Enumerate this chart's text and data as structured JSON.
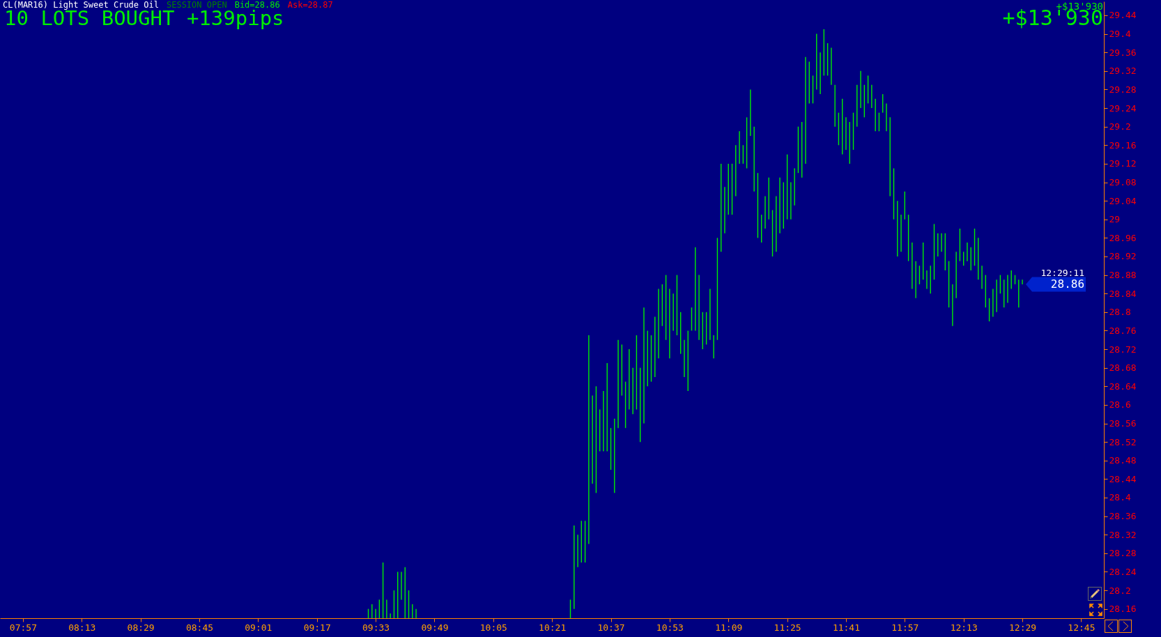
{
  "chart_data": {
    "type": "bar",
    "title": "CL(MAR16) Light Sweet Crude Oil",
    "subtitle": "10 LOTS BOUGHT +139pips",
    "annotations": [
      "SESSION OPEN",
      "Bid=28.86",
      "Ask=28.87",
      "+$13'930",
      "+$13'930",
      "12:29:11",
      "28.86"
    ],
    "x": [
      9.5167,
      9.5333,
      9.55,
      9.5667,
      9.5833,
      9.6,
      9.6167,
      9.6333,
      9.65,
      9.6667,
      9.6833,
      9.7,
      9.7167,
      9.7333,
      10.4333,
      10.45,
      10.4667,
      10.4833,
      10.5,
      10.5167,
      10.5333,
      10.55,
      10.5667,
      10.5833,
      10.6,
      10.6167,
      10.6333,
      10.65,
      10.6667,
      10.6833,
      10.7,
      10.7167,
      10.7333,
      10.75,
      10.7667,
      10.7833,
      10.8,
      10.8167,
      10.8333,
      10.85,
      10.8667,
      10.8833,
      10.9,
      10.9167,
      10.9333,
      10.95,
      10.9667,
      10.9833,
      11,
      11.0167,
      11.0333,
      11.05,
      11.0667,
      11.0833,
      11.1,
      11.1167,
      11.1333,
      11.15,
      11.1667,
      11.1833,
      11.2,
      11.2167,
      11.2333,
      11.25,
      11.2667,
      11.2833,
      11.3,
      11.3167,
      11.3333,
      11.35,
      11.3667,
      11.3833,
      11.4,
      11.4167,
      11.4333,
      11.45,
      11.4667,
      11.4833,
      11.5,
      11.5167,
      11.5333,
      11.55,
      11.5667,
      11.5833,
      11.6,
      11.6167,
      11.6333,
      11.65,
      11.6667,
      11.6833,
      11.7,
      11.7167,
      11.7333,
      11.75,
      11.7667,
      11.7833,
      11.8,
      11.8167,
      11.8333,
      11.85,
      11.8667,
      11.8833,
      11.9,
      11.9167,
      11.9333,
      11.95,
      11.9667,
      11.9833,
      12,
      12.0167,
      12.0333,
      12.05,
      12.0667,
      12.0833,
      12.1,
      12.1167,
      12.1333,
      12.15,
      12.1667,
      12.1833,
      12.2,
      12.2167,
      12.2333,
      12.25,
      12.2667,
      12.2833,
      12.3,
      12.3167,
      12.3333,
      12.35,
      12.3667,
      12.3833,
      12.4,
      12.4167,
      12.4333,
      12.45,
      12.4667,
      12.4833
    ],
    "base": [
      28.14,
      28.14,
      28.14,
      28.14,
      28.14,
      28.14,
      28.14,
      28.14,
      28.14,
      28.18,
      28.14,
      28.14,
      28.14,
      28.14,
      28.14,
      28.16,
      28.25,
      28.26,
      28.26,
      28.3,
      28.43,
      28.41,
      28.5,
      28.5,
      28.5,
      28.46,
      28.41,
      28.55,
      28.62,
      28.55,
      28.59,
      28.58,
      28.59,
      28.52,
      28.56,
      28.64,
      28.65,
      28.66,
      28.7,
      28.77,
      28.74,
      28.7,
      28.76,
      28.75,
      28.71,
      28.66,
      28.63,
      28.76,
      28.76,
      28.74,
      28.72,
      28.73,
      28.74,
      28.7,
      28.74,
      28.93,
      28.97,
      29.01,
      29.01,
      29.05,
      29.12,
      29.12,
      29.11,
      29.18,
      29.06,
      28.96,
      28.95,
      28.98,
      29.0,
      28.92,
      28.93,
      28.97,
      28.98,
      29.0,
      29.0,
      29.03,
      29.1,
      29.09,
      29.12,
      29.25,
      29.25,
      29.28,
      29.27,
      29.31,
      29.31,
      29.29,
      29.2,
      29.16,
      29.14,
      29.15,
      29.12,
      29.15,
      29.2,
      29.24,
      29.22,
      29.25,
      29.24,
      29.19,
      29.19,
      29.23,
      29.19,
      29.05,
      29.0,
      28.92,
      28.93,
      29.0,
      28.91,
      28.85,
      28.83,
      28.86,
      28.87,
      28.85,
      28.84,
      28.87,
      28.92,
      28.93,
      28.89,
      28.81,
      28.77,
      28.83,
      28.91,
      28.9,
      28.91,
      28.89,
      28.9,
      28.87,
      28.85,
      28.81,
      28.78,
      28.79,
      28.8,
      28.84,
      28.81,
      28.82,
      28.85,
      28.86,
      28.81,
      28.86
    ],
    "values": [
      0.02,
      0.03,
      0.02,
      0.04,
      0.12,
      0.04,
      0.01,
      0.06,
      0.1,
      0.06,
      0.11,
      0.06,
      0.03,
      0.02,
      0.04,
      0.18,
      0.07,
      0.09,
      0.09,
      0.45,
      0.19,
      0.23,
      0.09,
      0.13,
      0.19,
      0.09,
      0.16,
      0.19,
      0.11,
      0.1,
      0.13,
      0.1,
      0.16,
      0.16,
      0.25,
      0.12,
      0.1,
      0.13,
      0.15,
      0.09,
      0.14,
      0.15,
      0.08,
      0.13,
      0.09,
      0.08,
      0.13,
      0.05,
      0.18,
      0.14,
      0.08,
      0.07,
      0.11,
      0.05,
      0.22,
      0.19,
      0.1,
      0.11,
      0.11,
      0.11,
      0.07,
      0.04,
      0.11,
      0.1,
      0.14,
      0.14,
      0.06,
      0.07,
      0.09,
      0.1,
      0.12,
      0.12,
      0.1,
      0.14,
      0.08,
      0.08,
      0.1,
      0.12,
      0.23,
      0.09,
      0.06,
      0.12,
      0.09,
      0.1,
      0.07,
      0.08,
      0.09,
      0.07,
      0.12,
      0.07,
      0.09,
      0.08,
      0.09,
      0.08,
      0.07,
      0.06,
      0.05,
      0.07,
      0.04,
      0.04,
      0.06,
      0.17,
      0.11,
      0.12,
      0.08,
      0.06,
      0.1,
      0.1,
      0.08,
      0.04,
      0.08,
      0.04,
      0.06,
      0.12,
      0.05,
      0.04,
      0.08,
      0.1,
      0.09,
      0.1,
      0.07,
      0.03,
      0.04,
      0.05,
      0.08,
      0.09,
      0.05,
      0.07,
      0.05,
      0.06,
      0.07,
      0.04,
      0.06,
      0.06,
      0.04,
      0.02,
      0.06,
      0.01
    ],
    "color": "#00ee00",
    "xlim": [
      7.846,
      12.853
    ],
    "xticks": [
      {
        "value": 7.95,
        "label": "07:57"
      },
      {
        "value": 8.2167,
        "label": "08:13"
      },
      {
        "value": 8.4833,
        "label": "08:29"
      },
      {
        "value": 8.75,
        "label": "08:45"
      },
      {
        "value": 9.0167,
        "label": "09:01"
      },
      {
        "value": 9.2833,
        "label": "09:17"
      },
      {
        "value": 9.55,
        "label": "09:33"
      },
      {
        "value": 9.8167,
        "label": "09:49"
      },
      {
        "value": 10.0833,
        "label": "10:05"
      },
      {
        "value": 10.35,
        "label": "10:21"
      },
      {
        "value": 10.6167,
        "label": "10:37"
      },
      {
        "value": 10.8833,
        "label": "10:53"
      },
      {
        "value": 11.15,
        "label": "11:09"
      },
      {
        "value": 11.4167,
        "label": "11:25"
      },
      {
        "value": 11.6833,
        "label": "11:41"
      },
      {
        "value": 11.95,
        "label": "11:57"
      },
      {
        "value": 12.2167,
        "label": "12:13"
      },
      {
        "value": 12.4833,
        "label": "12:29"
      },
      {
        "value": 12.75,
        "label": "12:45"
      }
    ],
    "ylim": [
      28.14,
      29.47
    ],
    "yticks": [
      29.44,
      29.4,
      29.36,
      29.32,
      29.28,
      29.24,
      29.2,
      29.16,
      29.12,
      29.08,
      29.04,
      29,
      28.96,
      28.92,
      28.88,
      28.84,
      28.8,
      28.76,
      28.72,
      28.68,
      28.64,
      28.6,
      28.56,
      28.52,
      28.48,
      28.44,
      28.4,
      28.36,
      28.32,
      28.28,
      28.24,
      28.2,
      28.16
    ]
  }
}
